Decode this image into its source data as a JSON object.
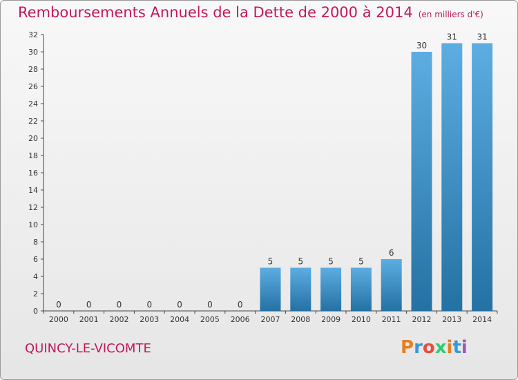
{
  "header": {
    "title": "Remboursements Annuels de la Dette de 2000 à 2014",
    "unit": "(en milliers d'€)"
  },
  "footer": {
    "commune": "QUINCY-LE-VICOMTE",
    "logo_text": "Proxiti",
    "logo_colors": [
      "#e67e22",
      "#3498db",
      "#e74c3c",
      "#2ecc71",
      "#e67e22",
      "#3498db",
      "#9b59b6"
    ]
  },
  "colors": {
    "bar_top": "#5dade2",
    "bar_bottom": "#2471a3",
    "title": "#c2185b"
  },
  "chart_data": {
    "type": "bar",
    "categories": [
      "2000",
      "2001",
      "2002",
      "2003",
      "2004",
      "2005",
      "2006",
      "2007",
      "2008",
      "2009",
      "2010",
      "2011",
      "2012",
      "2013",
      "2014"
    ],
    "values": [
      0,
      0,
      0,
      0,
      0,
      0,
      0,
      5,
      5,
      5,
      5,
      6,
      30,
      31,
      31
    ],
    "title": "Remboursements Annuels de la Dette de 2000 à 2014",
    "xlabel": "",
    "ylabel": "",
    "ylim": [
      0,
      32
    ],
    "yticks": [
      0,
      2,
      4,
      6,
      8,
      10,
      12,
      14,
      16,
      18,
      20,
      22,
      24,
      26,
      28,
      30,
      32
    ],
    "grid": false,
    "data_labels": true
  }
}
